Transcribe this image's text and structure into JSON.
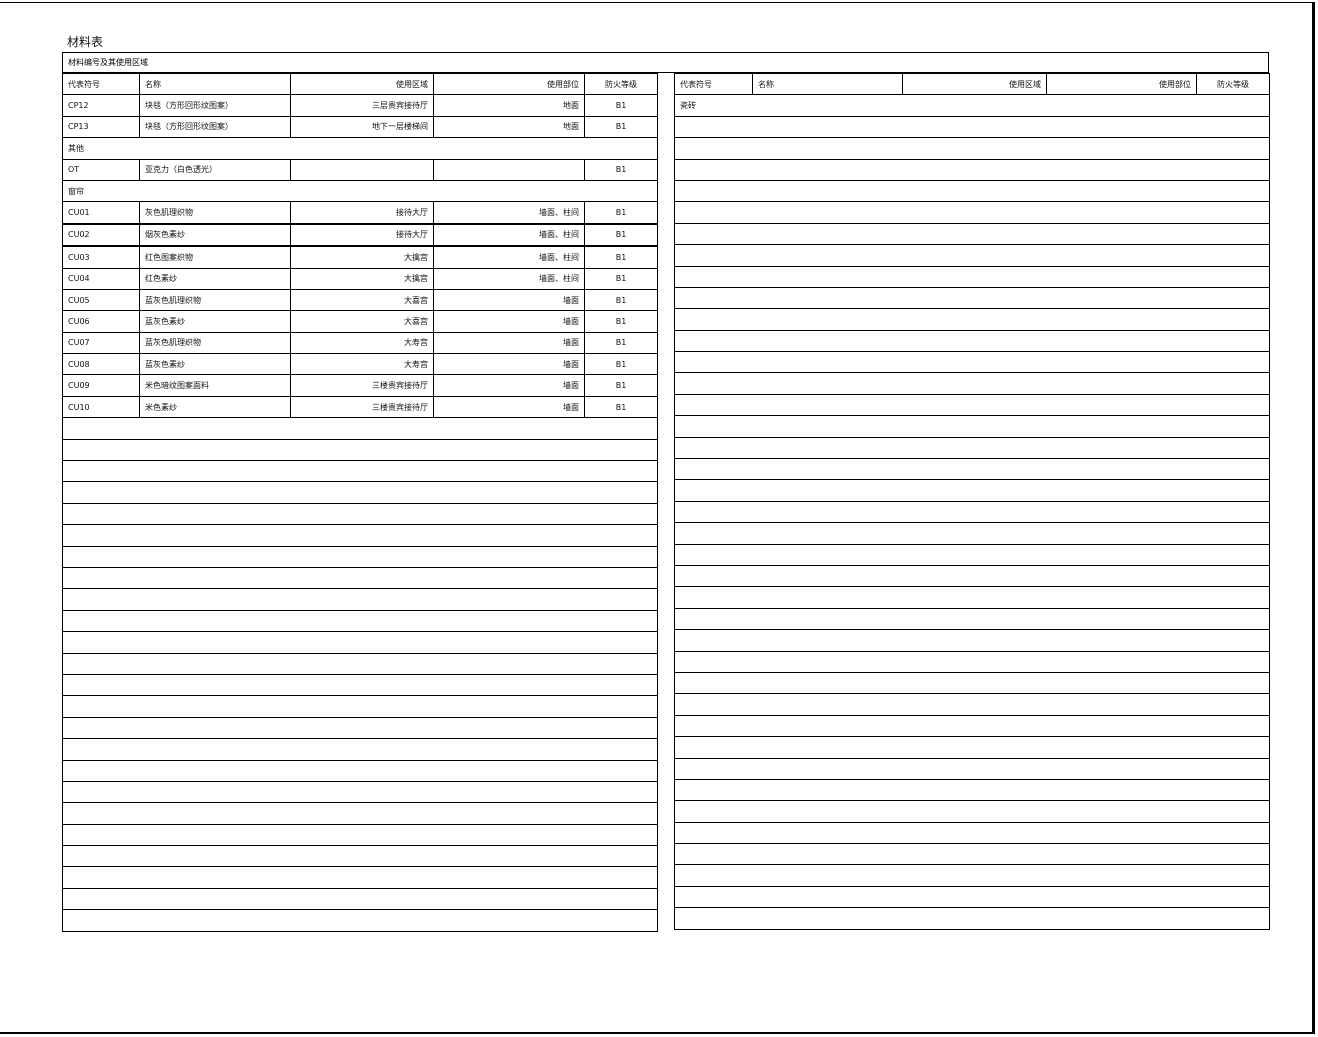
{
  "title": "材料表",
  "band": "材料编号及其使用区域",
  "headers": [
    "代表符号",
    "名称",
    "使用区域",
    "使用部位",
    "防火等级"
  ],
  "left_rows": [
    {
      "prefix": "CP",
      "num": "12",
      "name": "块毯（方形回形纹图案）",
      "area": "三层贵宾接待厅",
      "part": "地面",
      "fire": "B1"
    },
    {
      "prefix": "CP",
      "num": "13",
      "name": "块毯（方形回形纹图案）",
      "area": "地下一层楼梯间",
      "part": "地面",
      "fire": "B1"
    },
    {
      "section": "其他"
    },
    {
      "code": "OT",
      "name": "亚克力（白色透光）",
      "area": "",
      "part": "",
      "fire": "B1"
    },
    {
      "section": "窗帘"
    },
    {
      "prefix": "CU",
      "num": "01",
      "name": "灰色肌理织物",
      "area": "接待大厅",
      "part": "墙面、柱间",
      "fire": "B1"
    },
    {
      "prefix": "CU",
      "num": "02",
      "name": "烟灰色素纱",
      "area": "接待大厅",
      "part": "墙面、柱间",
      "fire": "B1"
    },
    {
      "prefix": "CU",
      "num": "03",
      "name": "红色图案织物",
      "area": "大擒宫",
      "part": "墙面、柱间",
      "fire": "B1"
    },
    {
      "prefix": "CU",
      "num": "04",
      "name": "红色素纱",
      "area": "大擒宫",
      "part": "墙面、柱间",
      "fire": "B1"
    },
    {
      "prefix": "CU",
      "num": "05",
      "name": "蓝灰色肌理织物",
      "area": "大喜宫",
      "part": "墙面",
      "fire": "B1"
    },
    {
      "prefix": "CU",
      "num": "06",
      "name": "蓝灰色素纱",
      "area": "大喜宫",
      "part": "墙面",
      "fire": "B1"
    },
    {
      "prefix": "CU",
      "num": "07",
      "name": "蓝灰色肌理织物",
      "area": "大寿宫",
      "part": "墙面",
      "fire": "B1"
    },
    {
      "prefix": "CU",
      "num": "08",
      "name": "蓝灰色素纱",
      "area": "大寿宫",
      "part": "墙面",
      "fire": "B1"
    },
    {
      "prefix": "CU",
      "num": "09",
      "name": "米色暗纹图案面料",
      "area": "三楼贵宾接待厅",
      "part": "墙面",
      "fire": "B1"
    },
    {
      "prefix": "CU",
      "num": "10",
      "name": "米色素纱",
      "area": "三楼贵宾接待厅",
      "part": "墙面",
      "fire": "B1"
    }
  ],
  "right_rows": [
    {
      "section": "瓷砖"
    }
  ]
}
